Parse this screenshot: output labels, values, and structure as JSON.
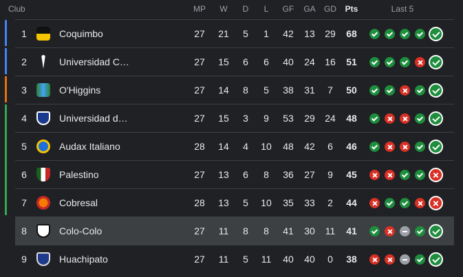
{
  "header": [
    "Club",
    "MP",
    "W",
    "D",
    "L",
    "GF",
    "GA",
    "GD",
    "Pts",
    "Last 5"
  ],
  "rows": [
    [
      1,
      "Coquimbo",
      27,
      21,
      5,
      1,
      42,
      13,
      29,
      68
    ],
    [
      2,
      "Universidad C…",
      27,
      15,
      6,
      6,
      40,
      24,
      16,
      51
    ],
    [
      3,
      "O'Higgins",
      27,
      14,
      8,
      5,
      38,
      31,
      7,
      50
    ],
    [
      4,
      "Universidad d…",
      27,
      15,
      3,
      9,
      53,
      29,
      24,
      48
    ],
    [
      5,
      "Audax Italiano",
      28,
      14,
      4,
      10,
      48,
      42,
      6,
      46
    ],
    [
      6,
      "Palestino",
      27,
      13,
      6,
      8,
      36,
      27,
      9,
      45
    ],
    [
      7,
      "Cobresal",
      28,
      13,
      5,
      10,
      35,
      33,
      2,
      44
    ],
    [
      8,
      "Colo-Colo",
      27,
      11,
      8,
      8,
      41,
      30,
      11,
      41
    ],
    [
      9,
      "Huachipato",
      27,
      11,
      5,
      11,
      40,
      40,
      0,
      38
    ]
  ]
}
